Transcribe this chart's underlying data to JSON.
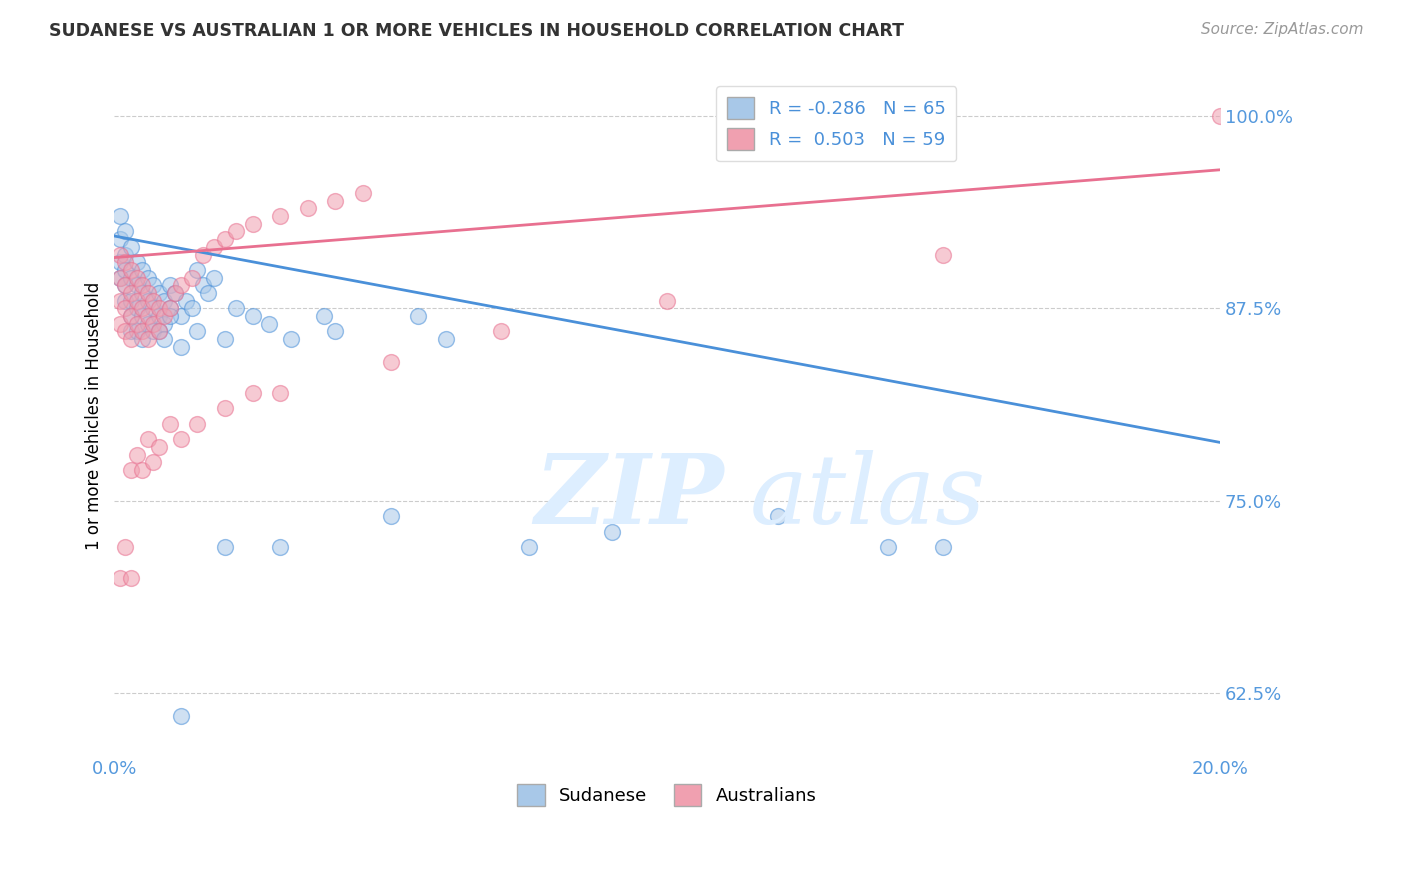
{
  "title": "SUDANESE VS AUSTRALIAN 1 OR MORE VEHICLES IN HOUSEHOLD CORRELATION CHART",
  "source": "Source: ZipAtlas.com",
  "ylabel": "1 or more Vehicles in Household",
  "xlim": [
    0.0,
    0.2
  ],
  "ylim": [
    0.585,
    1.025
  ],
  "yticks": [
    0.625,
    0.75,
    0.875,
    1.0
  ],
  "ytick_labels": [
    "62.5%",
    "75.0%",
    "87.5%",
    "100.0%"
  ],
  "blue_R": "-0.286",
  "blue_N": "65",
  "pink_R": "0.503",
  "pink_N": "59",
  "blue_color": "#a8c8e8",
  "pink_color": "#f0a0b0",
  "blue_line_color": "#4a90d9",
  "pink_line_color": "#e87090",
  "legend_blue_label": "Sudanese",
  "legend_pink_label": "Australians",
  "blue_line_x0": 0.0,
  "blue_line_y0": 0.922,
  "blue_line_x1": 0.2,
  "blue_line_y1": 0.788,
  "pink_line_x0": 0.0,
  "pink_line_y0": 0.908,
  "pink_line_x1": 0.2,
  "pink_line_y1": 0.965,
  "blue_scatter_x": [
    0.001,
    0.001,
    0.001,
    0.001,
    0.002,
    0.002,
    0.002,
    0.002,
    0.002,
    0.003,
    0.003,
    0.003,
    0.003,
    0.003,
    0.004,
    0.004,
    0.004,
    0.004,
    0.005,
    0.005,
    0.005,
    0.005,
    0.006,
    0.006,
    0.006,
    0.007,
    0.007,
    0.007,
    0.008,
    0.008,
    0.009,
    0.009,
    0.01,
    0.01,
    0.011,
    0.012,
    0.013,
    0.014,
    0.015,
    0.016,
    0.017,
    0.018,
    0.02,
    0.022,
    0.025,
    0.028,
    0.032,
    0.038,
    0.008,
    0.009,
    0.01,
    0.012,
    0.015,
    0.04,
    0.055,
    0.06,
    0.075,
    0.09,
    0.12,
    0.14,
    0.15,
    0.012,
    0.02,
    0.03,
    0.05
  ],
  "blue_scatter_y": [
    0.92,
    0.935,
    0.905,
    0.895,
    0.91,
    0.925,
    0.9,
    0.89,
    0.88,
    0.915,
    0.895,
    0.88,
    0.87,
    0.86,
    0.905,
    0.89,
    0.875,
    0.86,
    0.9,
    0.885,
    0.87,
    0.855,
    0.895,
    0.88,
    0.865,
    0.89,
    0.875,
    0.86,
    0.885,
    0.87,
    0.88,
    0.865,
    0.875,
    0.89,
    0.885,
    0.87,
    0.88,
    0.875,
    0.9,
    0.89,
    0.885,
    0.895,
    0.855,
    0.875,
    0.87,
    0.865,
    0.855,
    0.87,
    0.86,
    0.855,
    0.87,
    0.85,
    0.86,
    0.86,
    0.87,
    0.855,
    0.72,
    0.73,
    0.74,
    0.72,
    0.72,
    0.61,
    0.72,
    0.72,
    0.74
  ],
  "pink_scatter_x": [
    0.001,
    0.001,
    0.001,
    0.001,
    0.002,
    0.002,
    0.002,
    0.002,
    0.003,
    0.003,
    0.003,
    0.003,
    0.004,
    0.004,
    0.004,
    0.005,
    0.005,
    0.005,
    0.006,
    0.006,
    0.006,
    0.007,
    0.007,
    0.008,
    0.008,
    0.009,
    0.01,
    0.011,
    0.012,
    0.014,
    0.016,
    0.018,
    0.02,
    0.022,
    0.025,
    0.03,
    0.035,
    0.04,
    0.045,
    0.003,
    0.004,
    0.005,
    0.006,
    0.007,
    0.008,
    0.01,
    0.012,
    0.015,
    0.02,
    0.025,
    0.03,
    0.05,
    0.07,
    0.1,
    0.15,
    0.2,
    0.001,
    0.002,
    0.003
  ],
  "pink_scatter_y": [
    0.91,
    0.895,
    0.88,
    0.865,
    0.905,
    0.89,
    0.875,
    0.86,
    0.9,
    0.885,
    0.87,
    0.855,
    0.895,
    0.88,
    0.865,
    0.89,
    0.875,
    0.86,
    0.885,
    0.87,
    0.855,
    0.88,
    0.865,
    0.875,
    0.86,
    0.87,
    0.875,
    0.885,
    0.89,
    0.895,
    0.91,
    0.915,
    0.92,
    0.925,
    0.93,
    0.935,
    0.94,
    0.945,
    0.95,
    0.77,
    0.78,
    0.77,
    0.79,
    0.775,
    0.785,
    0.8,
    0.79,
    0.8,
    0.81,
    0.82,
    0.82,
    0.84,
    0.86,
    0.88,
    0.91,
    1.0,
    0.7,
    0.72,
    0.7
  ]
}
